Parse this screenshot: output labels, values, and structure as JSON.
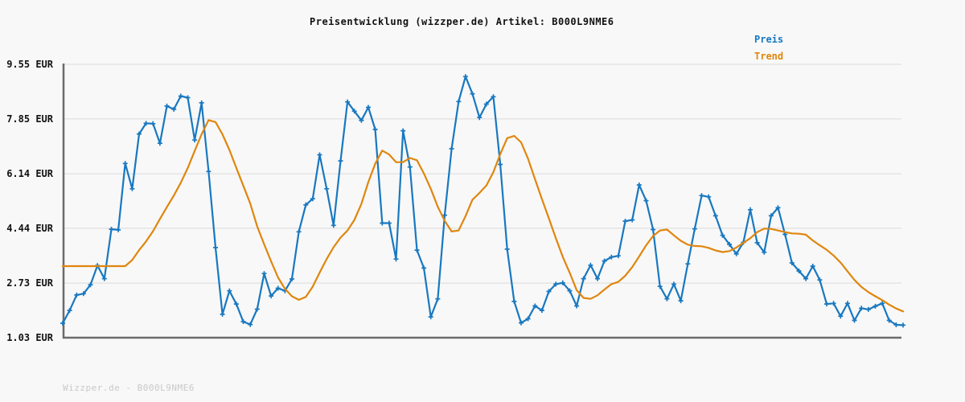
{
  "page": {
    "background": "#f8f8f8"
  },
  "header": {
    "title": "Preisentwicklung (wizzper.de) Artikel: B000L9NME6"
  },
  "legend": {
    "items": [
      {
        "label": "Preis",
        "color": "#1878c0"
      },
      {
        "label": "Trend",
        "color": "#e0860d"
      }
    ]
  },
  "watermark": {
    "text": "Wizzper.de - B000L9NME6"
  },
  "colors": {
    "background": "#f8f8f8",
    "gridline": "#e4e4e4",
    "spine": "#6b6b6b",
    "title_text": "#111111",
    "tick_text": "#111111",
    "watermark_text": "#c9c9c9",
    "preis": "#1878c0",
    "trend": "#e0860d"
  },
  "chart_data": {
    "type": "line",
    "title": "Preisentwicklung (wizzper.de) Artikel: B000L9NME6",
    "xlabel": "",
    "ylabel": "",
    "unit": "EUR",
    "ylim": [
      1.03,
      9.55
    ],
    "grid": true,
    "legend_position": "top-right",
    "x_tick_labels": [],
    "yticks": [
      {
        "label": "9.55 EUR",
        "value": 9.55
      },
      {
        "label": "7.85 EUR",
        "value": 7.85
      },
      {
        "label": "6.14 EUR",
        "value": 6.14
      },
      {
        "label": "4.44 EUR",
        "value": 4.44
      },
      {
        "label": "2.73 EUR",
        "value": 2.73
      },
      {
        "label": "1.03 EUR",
        "value": 1.03
      }
    ],
    "series": [
      {
        "name": "Preis",
        "color": "#1878c0",
        "marker": "plus",
        "values": [
          1.48,
          1.88,
          2.36,
          2.4,
          2.68,
          3.28,
          2.87,
          4.41,
          4.39,
          6.46,
          5.67,
          7.38,
          7.71,
          7.7,
          7.09,
          8.25,
          8.15,
          8.56,
          8.51,
          7.19,
          8.35,
          6.21,
          3.84,
          1.76,
          2.49,
          2.08,
          1.53,
          1.44,
          1.92,
          3.03,
          2.33,
          2.57,
          2.49,
          2.86,
          4.33,
          5.17,
          5.36,
          6.73,
          5.67,
          4.53,
          6.54,
          8.38,
          8.09,
          7.8,
          8.21,
          7.52,
          4.6,
          4.6,
          3.48,
          7.48,
          6.35,
          3.76,
          3.2,
          1.68,
          2.24,
          4.85,
          6.92,
          8.39,
          9.17,
          8.63,
          7.89,
          8.31,
          8.54,
          6.43,
          3.79,
          2.16,
          1.49,
          1.62,
          2.02,
          1.88,
          2.47,
          2.7,
          2.74,
          2.49,
          2.02,
          2.87,
          3.29,
          2.87,
          3.42,
          3.54,
          3.58,
          4.66,
          4.7,
          5.79,
          5.3,
          4.4,
          2.63,
          2.24,
          2.7,
          2.18,
          3.33,
          4.42,
          5.46,
          5.42,
          4.83,
          4.22,
          3.94,
          3.64,
          4.0,
          5.02,
          3.99,
          3.69,
          4.83,
          5.08,
          4.25,
          3.36,
          3.11,
          2.87,
          3.26,
          2.83,
          2.08,
          2.1,
          1.7,
          2.1,
          1.57,
          1.95,
          1.91,
          2.01,
          2.1,
          1.57,
          1.43,
          1.42
        ]
      },
      {
        "name": "Trend",
        "color": "#e0860d",
        "marker": "none",
        "values": [
          3.26,
          3.26,
          3.26,
          3.26,
          3.26,
          3.26,
          3.26,
          3.26,
          3.26,
          3.26,
          3.45,
          3.76,
          4.03,
          4.35,
          4.73,
          5.1,
          5.46,
          5.86,
          6.32,
          6.85,
          7.37,
          7.81,
          7.75,
          7.37,
          6.88,
          6.32,
          5.77,
          5.21,
          4.5,
          3.94,
          3.41,
          2.91,
          2.55,
          2.32,
          2.21,
          2.3,
          2.62,
          3.06,
          3.48,
          3.85,
          4.15,
          4.37,
          4.7,
          5.2,
          5.88,
          6.45,
          6.86,
          6.74,
          6.5,
          6.5,
          6.63,
          6.56,
          6.15,
          5.67,
          5.11,
          4.67,
          4.34,
          4.37,
          4.82,
          5.33,
          5.54,
          5.77,
          6.19,
          6.75,
          7.25,
          7.32,
          7.12,
          6.61,
          5.97,
          5.35,
          4.75,
          4.13,
          3.55,
          3.05,
          2.51,
          2.27,
          2.24,
          2.35,
          2.53,
          2.7,
          2.77,
          2.96,
          3.23,
          3.56,
          3.91,
          4.2,
          4.37,
          4.4,
          4.22,
          4.05,
          3.93,
          3.89,
          3.88,
          3.83,
          3.75,
          3.7,
          3.73,
          3.84,
          3.99,
          4.13,
          4.32,
          4.43,
          4.42,
          4.37,
          4.32,
          4.28,
          4.27,
          4.24,
          4.06,
          3.91,
          3.77,
          3.59,
          3.37,
          3.1,
          2.83,
          2.61,
          2.45,
          2.32,
          2.2,
          2.06,
          1.94,
          1.85
        ]
      }
    ]
  }
}
